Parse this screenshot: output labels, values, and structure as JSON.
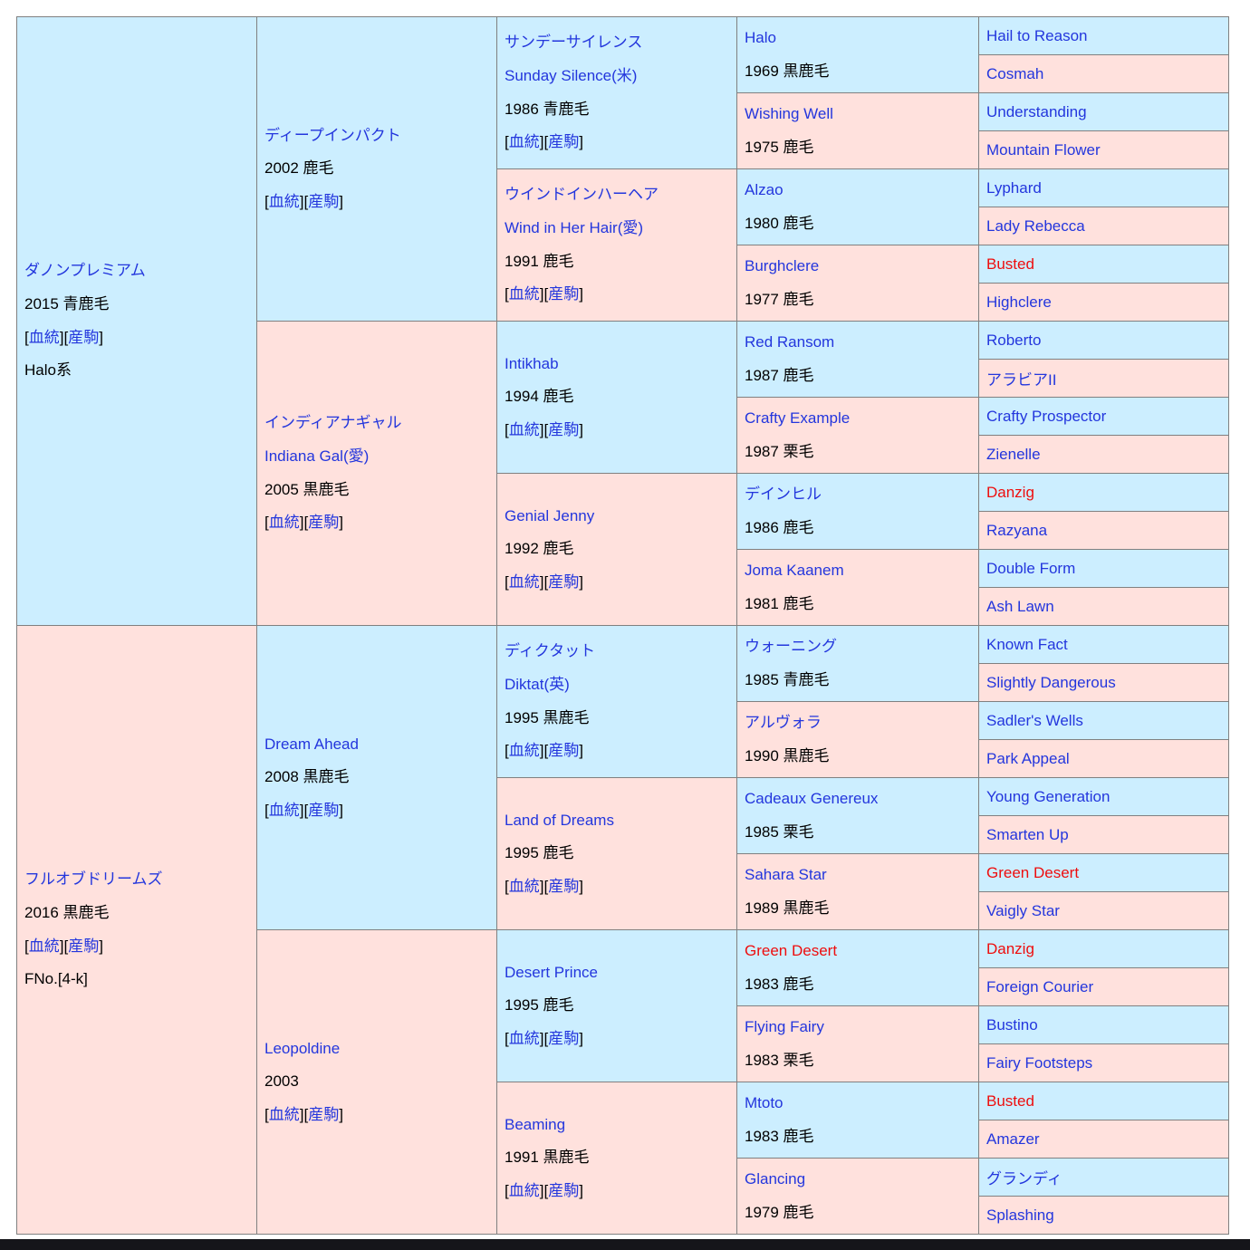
{
  "colors": {
    "male_bg": "#cceeff",
    "female_bg": "#ffe1dd",
    "link": "#2336dd",
    "duplicate": "#ee0d0d",
    "text": "#000000",
    "border": "#808080",
    "page_bg": "#ffffff",
    "bottom_bar": "#15151a"
  },
  "labels": {
    "open": "[",
    "close": "]",
    "blood": "血統",
    "offspring": "産駒"
  },
  "g1": [
    {
      "name": "ダノンプレミアム",
      "detail": "2015 青鹿毛",
      "note": "Halo系"
    },
    {
      "name": "フルオブドリームズ",
      "detail": "2016 黒鹿毛",
      "note": "FNo.[4-k]"
    }
  ],
  "g2": [
    {
      "name": "ディープインパクト",
      "detail": "2002 鹿毛"
    },
    {
      "name": "インディアナギャル",
      "name2": "Indiana Gal(愛)",
      "detail": "2005 黒鹿毛"
    },
    {
      "name": "Dream Ahead",
      "detail": "2008 黒鹿毛"
    },
    {
      "name": "Leopoldine",
      "detail": "2003"
    }
  ],
  "g3": [
    {
      "name": "サンデーサイレンス",
      "name2": "Sunday Silence(米)",
      "detail": "1986 青鹿毛"
    },
    {
      "name": "ウインドインハーヘア",
      "name2": "Wind in Her Hair(愛)",
      "detail": "1991 鹿毛"
    },
    {
      "name": "Intikhab",
      "detail": "1994 鹿毛"
    },
    {
      "name": "Genial Jenny",
      "detail": "1992 鹿毛"
    },
    {
      "name": "ディクタット",
      "name2": "Diktat(英)",
      "detail": "1995 黒鹿毛"
    },
    {
      "name": "Land of Dreams",
      "detail": "1995 鹿毛"
    },
    {
      "name": "Desert Prince",
      "detail": "1995 鹿毛"
    },
    {
      "name": "Beaming",
      "detail": "1991 黒鹿毛"
    }
  ],
  "g4": [
    {
      "name": "Halo",
      "detail": "1969 黒鹿毛"
    },
    {
      "name": "Wishing Well",
      "detail": "1975 鹿毛"
    },
    {
      "name": "Alzao",
      "detail": "1980 鹿毛"
    },
    {
      "name": "Burghclere",
      "detail": "1977 鹿毛"
    },
    {
      "name": "Red Ransom",
      "detail": "1987 鹿毛"
    },
    {
      "name": "Crafty Example",
      "detail": "1987 栗毛"
    },
    {
      "name": "デインヒル",
      "detail": "1986 鹿毛"
    },
    {
      "name": "Joma Kaanem",
      "detail": "1981 鹿毛"
    },
    {
      "name": "ウォーニング",
      "detail": "1985 青鹿毛"
    },
    {
      "name": "アルヴォラ",
      "detail": "1990 黒鹿毛"
    },
    {
      "name": "Cadeaux Genereux",
      "detail": "1985 栗毛"
    },
    {
      "name": "Sahara Star",
      "detail": "1989 黒鹿毛"
    },
    {
      "name": "Green Desert",
      "detail": "1983 鹿毛"
    },
    {
      "name": "Flying Fairy",
      "detail": "1983 栗毛"
    },
    {
      "name": "Mtoto",
      "detail": "1983 鹿毛"
    },
    {
      "name": "Glancing",
      "detail": "1979 鹿毛"
    }
  ],
  "g5": [
    "Hail to Reason",
    "Cosmah",
    "Understanding",
    "Mountain Flower",
    "Lyphard",
    "Lady Rebecca",
    "Busted",
    "Highclere",
    "Roberto",
    "アラビアII",
    "Crafty Prospector",
    "Zienelle",
    "Danzig",
    "Razyana",
    "Double Form",
    "Ash Lawn",
    "Known Fact",
    "Slightly Dangerous",
    "Sadler's Wells",
    "Park Appeal",
    "Young Generation",
    "Smarten Up",
    "Green Desert",
    "Vaigly Star",
    "Danzig",
    "Foreign Courier",
    "Bustino",
    "Fairy Footsteps",
    "Busted",
    "Amazer",
    "グランディ",
    "Splashing"
  ]
}
